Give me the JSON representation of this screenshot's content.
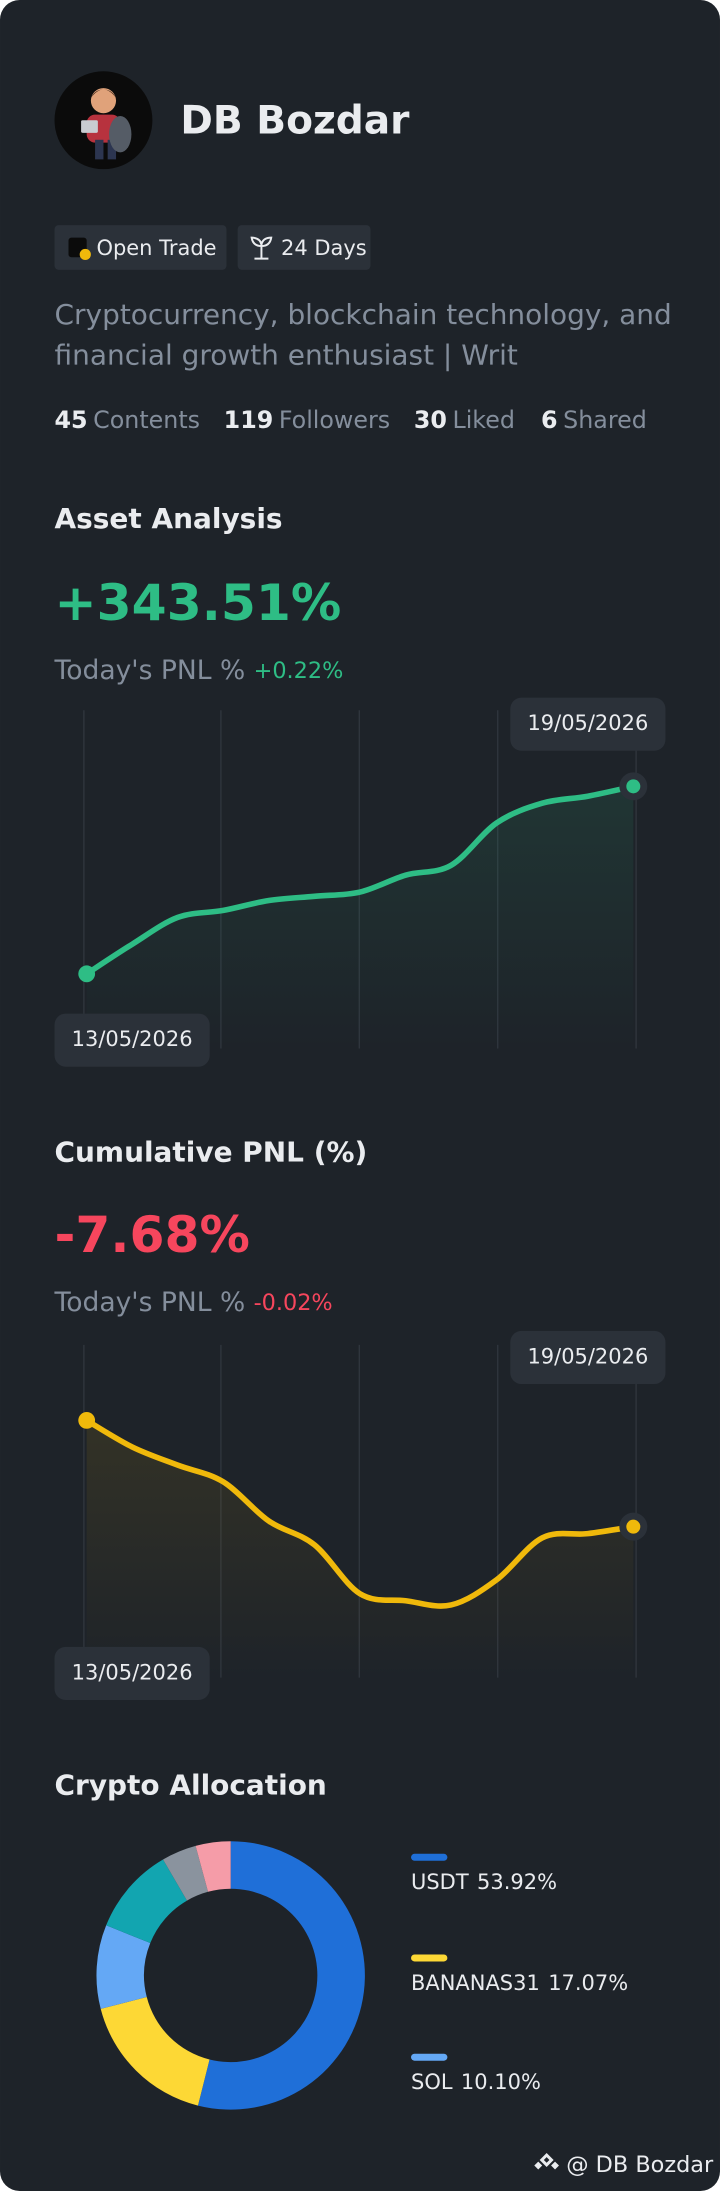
{
  "profile": {
    "name": "DB Bozdar",
    "badges": [
      "Open Trade",
      "24 Days"
    ],
    "bio": [
      "Cryptocurrency, blockchain technology, and",
      "financial growth enthusiast | Writ"
    ],
    "stats": [
      {
        "value": "45",
        "label": "Contents"
      },
      {
        "value": "119",
        "label": "Followers"
      },
      {
        "value": "30",
        "label": "Liked"
      },
      {
        "value": "6",
        "label": "Shared"
      }
    ]
  },
  "asset_analysis": {
    "title": "Asset Analysis",
    "headline": "+343.51%",
    "pnl_label": "Today's PNL %",
    "pnl_value": "+0.22%",
    "chart_data": {
      "type": "line",
      "x": [
        "13/05/2026",
        null,
        null,
        null,
        null,
        null,
        null,
        null,
        null,
        null,
        null,
        null,
        "19/05/2026"
      ],
      "values": [
        0,
        21,
        40,
        45,
        52,
        55,
        58,
        70,
        77,
        107,
        121,
        126,
        133
      ],
      "ylim": [
        -53,
        187
      ],
      "color": "#2ebd85"
    }
  },
  "cumulative_pnl": {
    "title": "Cumulative PNL (%)",
    "headline": "-7.68%",
    "pnl_label": "Today's PNL %",
    "pnl_value": "-0.02%",
    "chart_data": {
      "type": "line",
      "x": [
        "13/05/2026",
        null,
        null,
        null,
        null,
        null,
        null,
        null,
        null,
        null,
        null,
        null,
        "19/05/2026"
      ],
      "values": [
        0,
        -19,
        -32,
        -44,
        -72,
        -89,
        -124,
        -129,
        -132,
        -114,
        -84,
        -81,
        -76
      ],
      "ylim": [
        -184,
        54
      ],
      "color": "#f0b90b"
    }
  },
  "crypto_allocation": {
    "title": "Crypto Allocation",
    "chart_data": {
      "type": "pie",
      "categories": [
        "USDT",
        "BANANAS31",
        "SOL",
        null,
        null,
        null
      ],
      "values": [
        53.92,
        17.07,
        10.1,
        10.5,
        4.2,
        4.21
      ],
      "value_labels": [
        "53.92%",
        "17.07%",
        "10.10%",
        null,
        null,
        null
      ],
      "colors": [
        "#1f6fd8",
        "#fdd835",
        "#64a8f5",
        "#12a5b0",
        "#8a939e",
        "#f59ca8"
      ]
    }
  },
  "watermark": "@ DB Bozdar"
}
